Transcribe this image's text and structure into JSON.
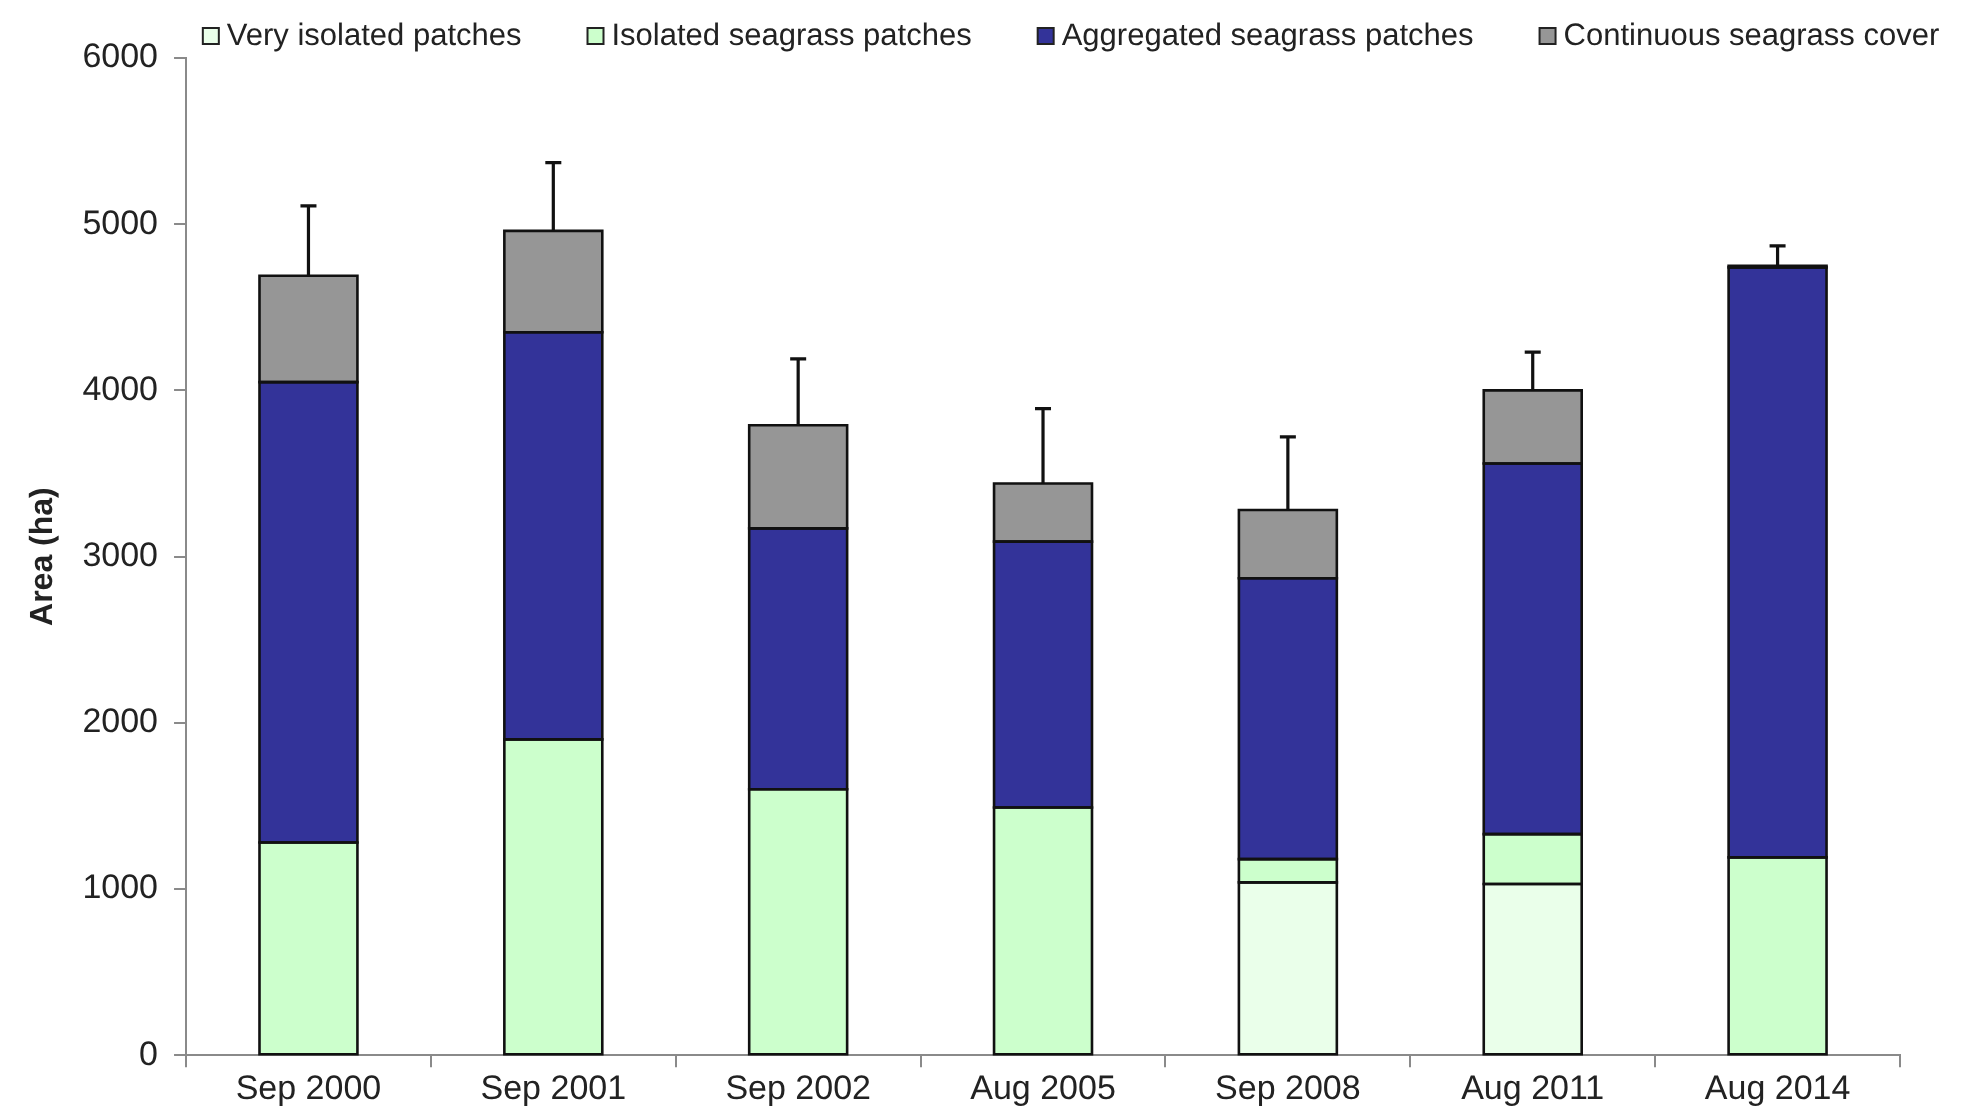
{
  "chart_data": {
    "type": "bar",
    "ylabel": "Area (ha)",
    "categories": [
      "Sep 2000",
      "Sep 2001",
      "Sep 2002",
      "Aug 2005",
      "Sep 2008",
      "Aug 2011",
      "Aug 2014"
    ],
    "series": [
      {
        "name": "Very isolated patches",
        "color": "#eaffea",
        "values": [
          null,
          null,
          null,
          null,
          1040,
          1030,
          null
        ]
      },
      {
        "name": "Isolated seagrass patches",
        "color": "#ccffcc",
        "values": [
          1280,
          1900,
          1600,
          1490,
          140,
          300,
          1190
        ]
      },
      {
        "name": "Aggregated seagrass patches",
        "color": "#333399",
        "values": [
          2770,
          2450,
          1570,
          1600,
          1690,
          2230,
          3550
        ]
      },
      {
        "name": "Continuous seagrass cover",
        "color": "#969696",
        "values": [
          640,
          610,
          620,
          350,
          410,
          440,
          10
        ],
        "errors": [
          [
            4690,
            5110
          ],
          [
            4960,
            5370
          ],
          [
            3790,
            4190
          ],
          [
            3440,
            3890
          ],
          [
            3280,
            3720
          ],
          [
            4000,
            4230
          ],
          [
            4750,
            4870
          ]
        ]
      }
    ],
    "stacked": true,
    "ylim": [
      0,
      6000
    ],
    "yticks": [
      0,
      1000,
      2000,
      3000,
      4000,
      5000,
      6000
    ],
    "legend": "top"
  }
}
